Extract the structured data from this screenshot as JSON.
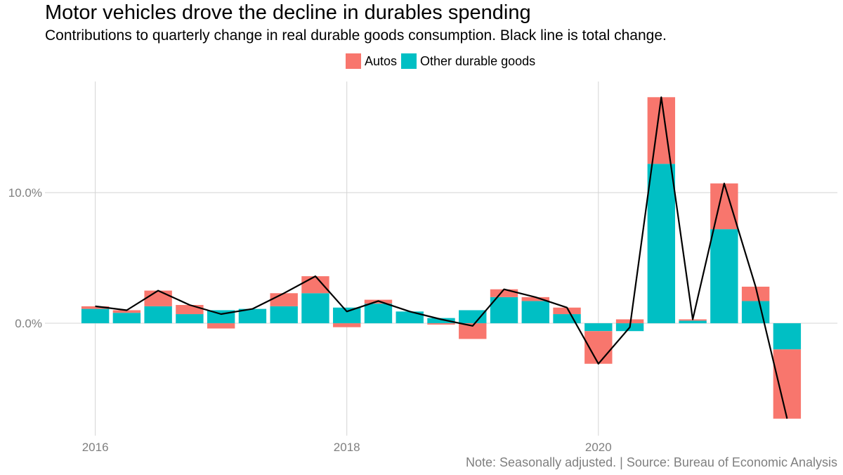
{
  "chart_data": {
    "type": "bar",
    "title": "Motor vehicles drove the decline in durables spending",
    "subtitle": "Contributions to quarterly change in real durable goods consumption. Black line is total change.",
    "caption": "Note: Seasonally adjusted. | Source: Bureau of Economic Analysis",
    "xlabel": "",
    "ylabel": "",
    "stacked": true,
    "legend_position": "top",
    "x_ticks": [
      {
        "value": 2016,
        "label": "2016"
      },
      {
        "value": 2018,
        "label": "2018"
      },
      {
        "value": 2020,
        "label": "2020"
      }
    ],
    "y_ticks": [
      {
        "value": 0,
        "label": "0.0%"
      },
      {
        "value": 10,
        "label": "10.0%"
      }
    ],
    "ylim": [
      -8.6,
      18.5
    ],
    "xlim": [
      2015.6,
      2021.9
    ],
    "x": [
      2016.0,
      2016.25,
      2016.5,
      2016.75,
      2017.0,
      2017.25,
      2017.5,
      2017.75,
      2018.0,
      2018.25,
      2018.5,
      2018.75,
      2019.0,
      2019.25,
      2019.5,
      2019.75,
      2020.0,
      2020.25,
      2020.5,
      2020.75,
      2021.0,
      2021.25,
      2021.5
    ],
    "series": [
      {
        "name": "Other durable goods",
        "color": "#00BFC4",
        "values": [
          1.1,
          0.8,
          1.3,
          0.7,
          1.0,
          1.1,
          1.3,
          2.3,
          1.2,
          1.5,
          0.9,
          0.4,
          1.0,
          2.0,
          1.7,
          0.7,
          -0.6,
          -0.6,
          12.2,
          0.2,
          7.2,
          1.7,
          -2.0
        ]
      },
      {
        "name": "Autos",
        "color": "#F8766D",
        "values": [
          0.2,
          0.2,
          1.2,
          0.7,
          -0.4,
          0.0,
          1.0,
          1.3,
          -0.3,
          0.3,
          0.0,
          -0.1,
          -1.2,
          0.6,
          0.3,
          0.5,
          -2.5,
          0.3,
          5.1,
          0.1,
          3.5,
          1.1,
          -5.3
        ]
      }
    ],
    "total": {
      "name": "Total change",
      "color": "#000000",
      "values": [
        1.3,
        1.0,
        2.5,
        1.4,
        0.7,
        1.1,
        2.3,
        3.6,
        0.9,
        1.7,
        0.9,
        0.3,
        -0.2,
        2.6,
        2.0,
        1.2,
        -3.1,
        -0.3,
        17.3,
        0.3,
        10.7,
        2.8,
        -7.3
      ]
    }
  }
}
